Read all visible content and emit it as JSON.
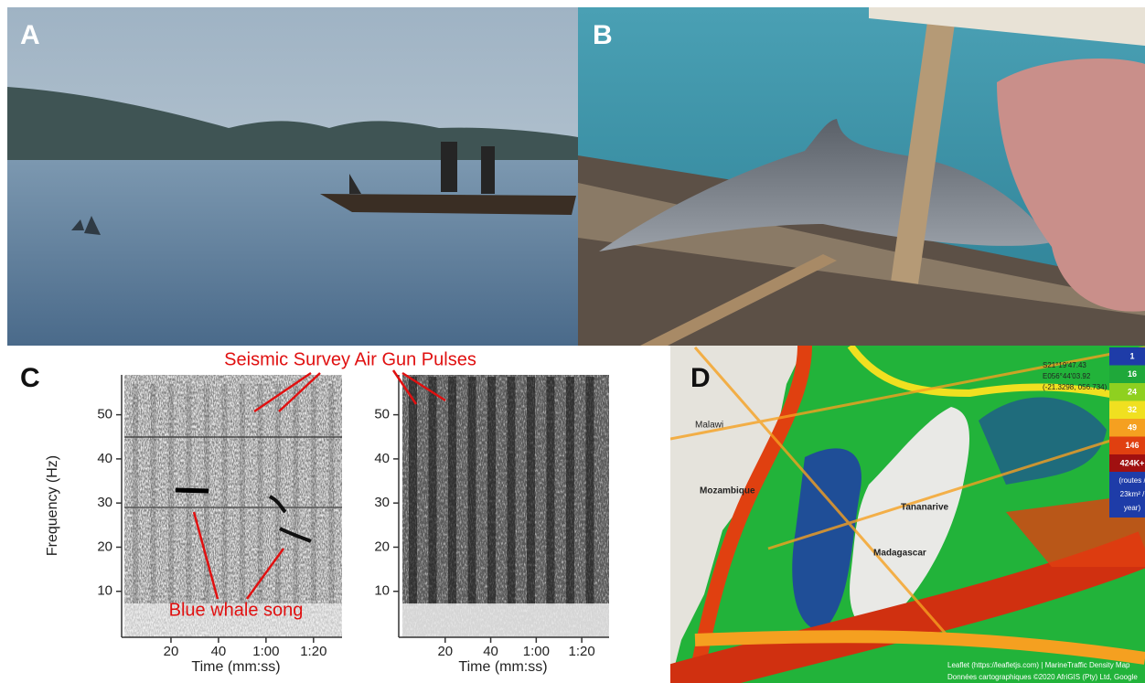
{
  "panels": {
    "a": {
      "label": "A"
    },
    "b": {
      "label": "B"
    },
    "c": {
      "label": "C",
      "annotation_top": "Seismic Survey Air Gun Pulses",
      "annotation_bottom": "Blue whale song",
      "y_label": "Frequency (Hz)",
      "ylim": [
        0,
        58
      ],
      "yticks": [
        10,
        20,
        30,
        40,
        50
      ],
      "xlim": [
        0,
        92
      ],
      "xticks": [
        20,
        40,
        {
          "value": 60,
          "label": "1:00"
        },
        {
          "value": 80,
          "label": "1:20"
        }
      ],
      "x_label_left": "Time (mm:ss)",
      "x_label_right": "Time (mm:ss)"
    },
    "d": {
      "label": "D",
      "places": [
        "Malawi",
        "Mozambique",
        "Tananarive",
        "Madagascar"
      ],
      "coords": [
        "S21°19'47.43",
        "E056°44'03.92",
        "(-21.3298, 056.734)"
      ],
      "legend": [
        "1",
        "16",
        "24",
        "32",
        "49",
        "146",
        "424K+"
      ],
      "legend_colors": [
        "#1e3ca8",
        "#1fa83a",
        "#8fd020",
        "#f0e020",
        "#f5a020",
        "#e04010",
        "#a01010"
      ],
      "legend_unit": [
        "(routes /",
        "23km² /",
        "year)"
      ],
      "attribution": [
        "Leaflet (https://leafletjs.com) | MarineTraffic Density Map",
        "Données cartographiques ©2020 AfriGIS (Pty) Ltd, Google"
      ]
    }
  }
}
